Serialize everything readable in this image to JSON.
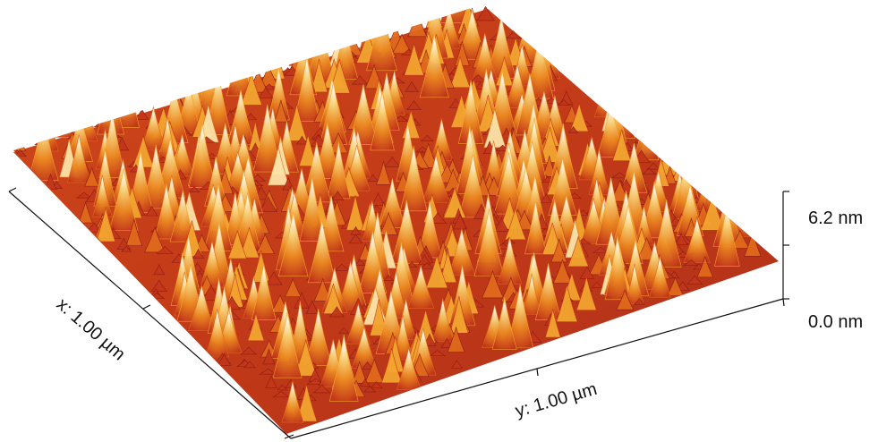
{
  "figure": {
    "x_axis_label": "x: 1.00 µm",
    "y_axis_label": "y: 1.00 µm",
    "z_max_label": "6.2 nm",
    "z_min_label": "0.0 nm",
    "z_range_nm": [
      0.0,
      6.2
    ],
    "x_range_um": [
      0,
      1.0
    ],
    "y_range_um": [
      0,
      1.0
    ],
    "colormap": [
      "#8a1c14",
      "#c2361a",
      "#e06a1c",
      "#f2a530",
      "#fbe3a8",
      "#ffffff"
    ],
    "axis_color": "#111111"
  }
}
